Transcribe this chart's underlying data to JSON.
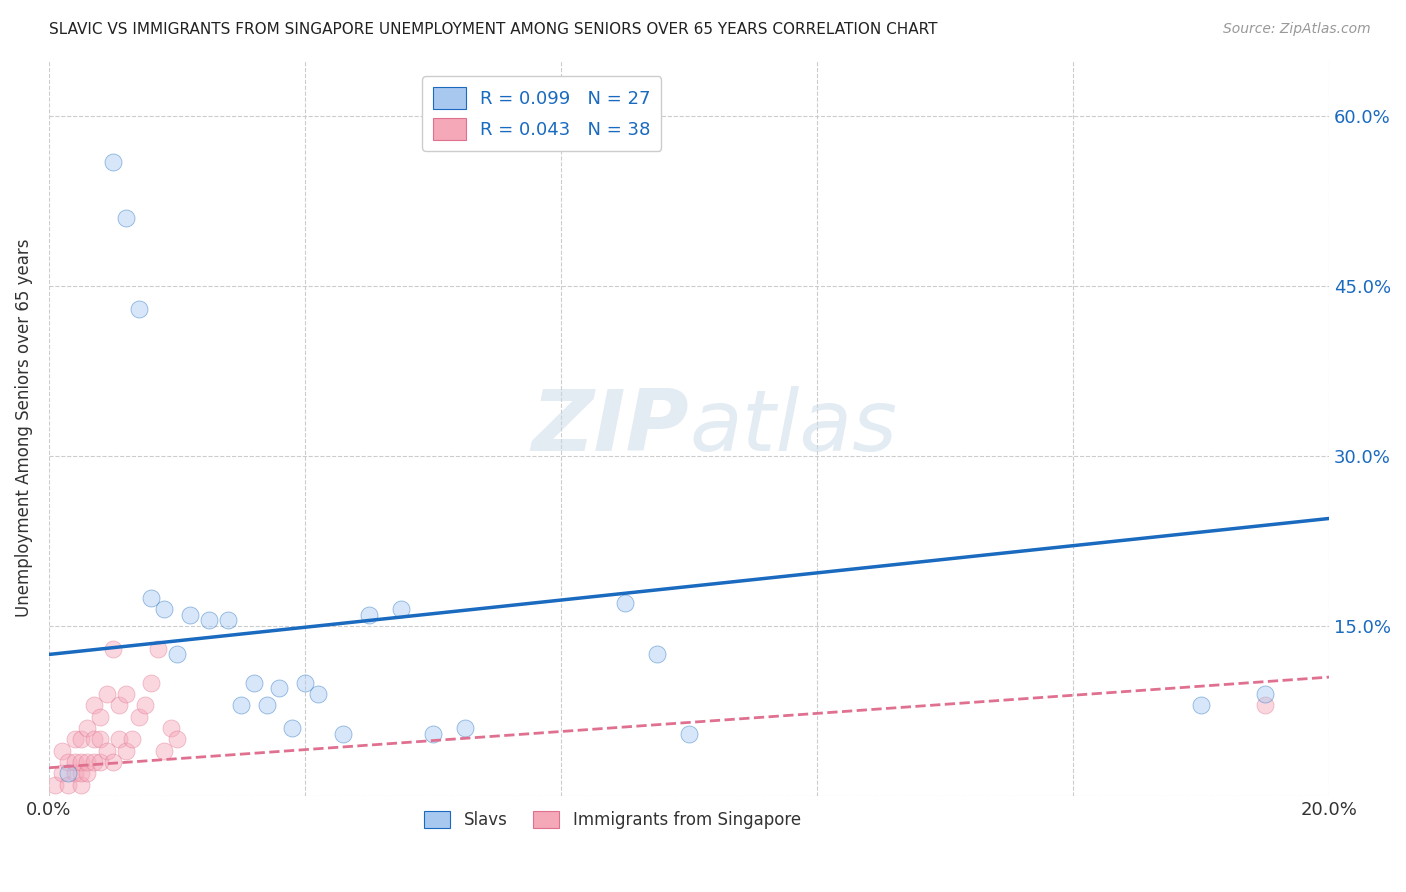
{
  "title": "SLAVIC VS IMMIGRANTS FROM SINGAPORE UNEMPLOYMENT AMONG SENIORS OVER 65 YEARS CORRELATION CHART",
  "source": "Source: ZipAtlas.com",
  "ylabel": "Unemployment Among Seniors over 65 years",
  "xlim": [
    0.0,
    0.2
  ],
  "ylim": [
    0.0,
    0.65
  ],
  "x_ticks": [
    0.0,
    0.04,
    0.08,
    0.12,
    0.16,
    0.2
  ],
  "y_ticks": [
    0.0,
    0.15,
    0.3,
    0.45,
    0.6
  ],
  "background_color": "#ffffff",
  "grid_color": "#cccccc",
  "slavs_color": "#a8c8f0",
  "singapore_color": "#f4a8b8",
  "trendline_slavs_color": "#1a6abf",
  "trendline_singapore_color": "#e07090",
  "slavs_x": [
    0.003,
    0.01,
    0.012,
    0.014,
    0.016,
    0.018,
    0.02,
    0.022,
    0.025,
    0.028,
    0.03,
    0.032,
    0.034,
    0.036,
    0.038,
    0.04,
    0.042,
    0.046,
    0.05,
    0.055,
    0.06,
    0.065,
    0.09,
    0.095,
    0.1,
    0.18,
    0.19
  ],
  "slavs_y": [
    0.02,
    0.56,
    0.51,
    0.43,
    0.175,
    0.165,
    0.125,
    0.16,
    0.155,
    0.155,
    0.08,
    0.1,
    0.08,
    0.095,
    0.06,
    0.1,
    0.09,
    0.055,
    0.16,
    0.165,
    0.055,
    0.06,
    0.17,
    0.125,
    0.055,
    0.08,
    0.09
  ],
  "singapore_x": [
    0.001,
    0.002,
    0.002,
    0.003,
    0.003,
    0.004,
    0.004,
    0.004,
    0.005,
    0.005,
    0.005,
    0.005,
    0.006,
    0.006,
    0.006,
    0.007,
    0.007,
    0.007,
    0.008,
    0.008,
    0.008,
    0.009,
    0.009,
    0.01,
    0.01,
    0.011,
    0.011,
    0.012,
    0.012,
    0.013,
    0.014,
    0.015,
    0.016,
    0.017,
    0.018,
    0.019,
    0.02,
    0.19
  ],
  "singapore_y": [
    0.01,
    0.02,
    0.04,
    0.01,
    0.03,
    0.02,
    0.03,
    0.05,
    0.01,
    0.02,
    0.03,
    0.05,
    0.02,
    0.03,
    0.06,
    0.03,
    0.05,
    0.08,
    0.03,
    0.05,
    0.07,
    0.04,
    0.09,
    0.03,
    0.13,
    0.05,
    0.08,
    0.04,
    0.09,
    0.05,
    0.07,
    0.08,
    0.1,
    0.13,
    0.04,
    0.06,
    0.05,
    0.08
  ],
  "marker_size": 150,
  "marker_alpha": 0.45,
  "trendline_slavs_x0": 0.0,
  "trendline_slavs_y0": 0.125,
  "trendline_slavs_x1": 0.2,
  "trendline_slavs_y1": 0.245,
  "trendline_singapore_x0": 0.0,
  "trendline_singapore_y0": 0.025,
  "trendline_singapore_x1": 0.2,
  "trendline_singapore_y1": 0.105
}
